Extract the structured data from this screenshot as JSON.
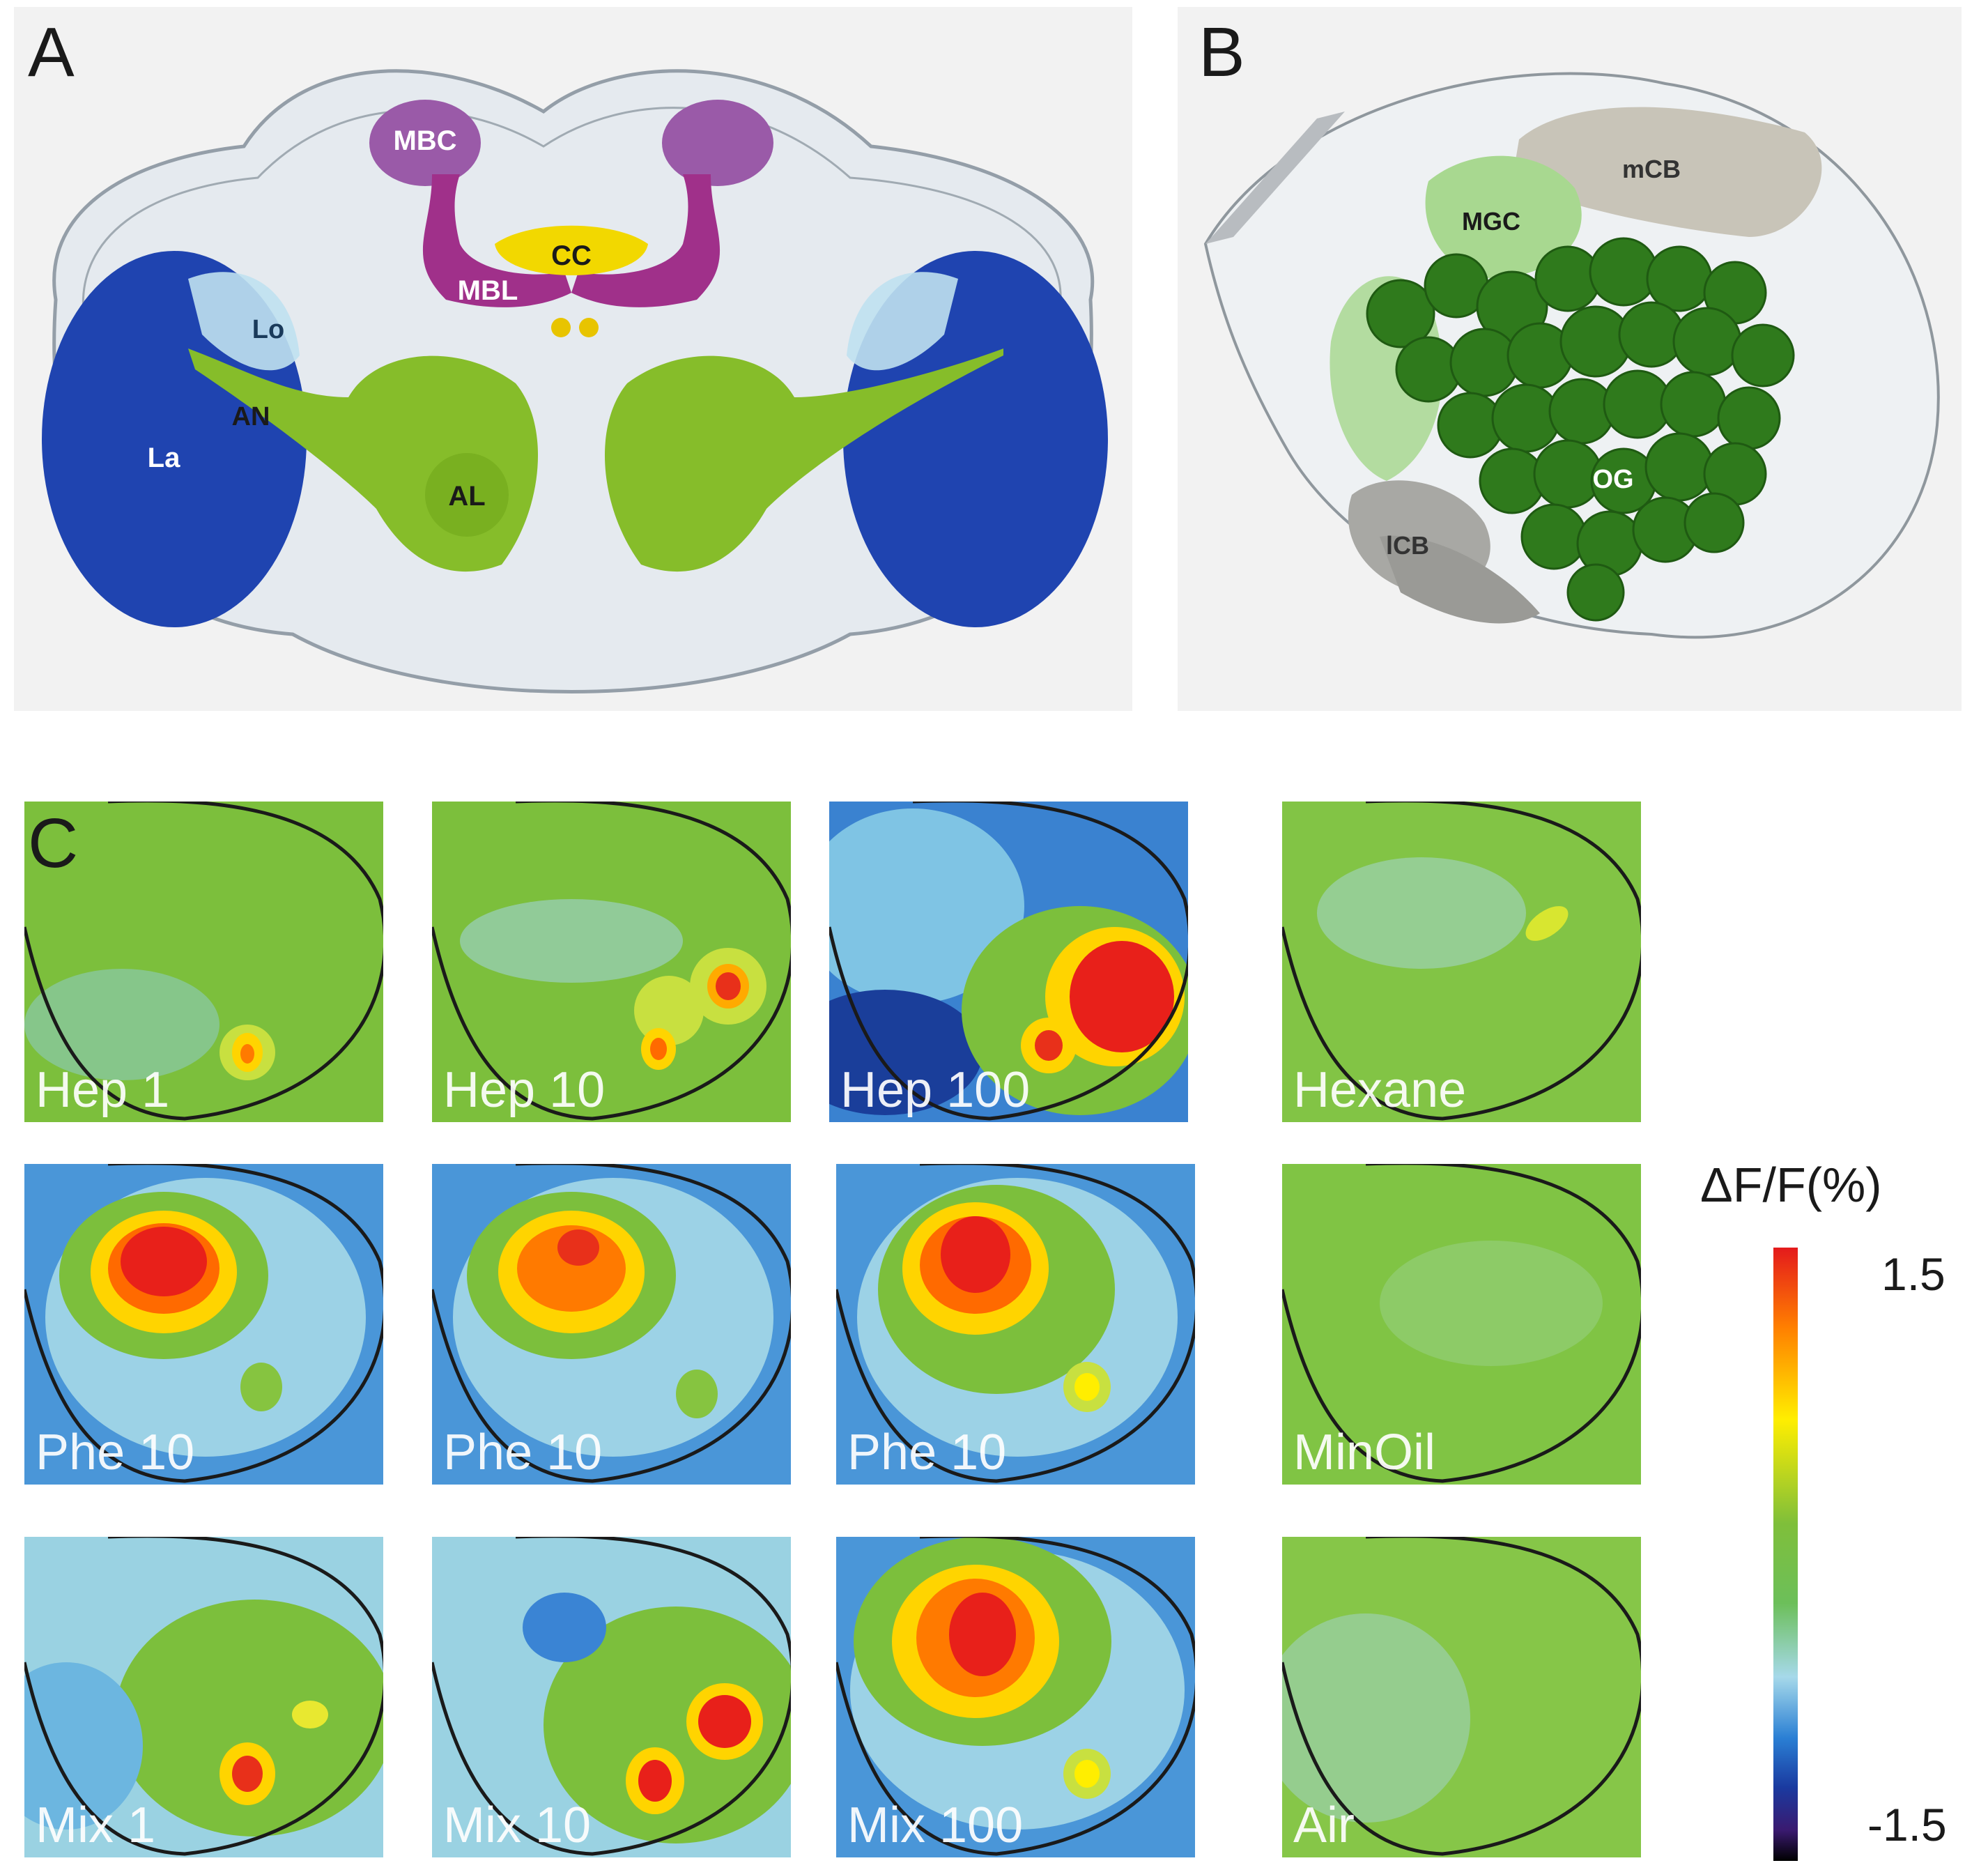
{
  "panels": {
    "a": {
      "letter": "A",
      "labels": {
        "mbc": "MBC",
        "cc": "CC",
        "mbl": "MBL",
        "lo": "Lo",
        "an": "AN",
        "la": "La",
        "al": "AL"
      }
    },
    "b": {
      "letter": "B",
      "labels": {
        "mcb": "mCB",
        "mgc": "MGC",
        "og": "OG",
        "lcb": "lCB"
      }
    },
    "c": {
      "letter": "C",
      "rows": [
        [
          "Hep 1",
          "Hep 10",
          "Hep 100",
          "Hexane"
        ],
        [
          "Phe 10",
          "Phe 10",
          "Phe 10",
          "MinOil"
        ],
        [
          "Mix 1",
          "Mix 10",
          "Mix 100",
          "Air"
        ]
      ]
    }
  },
  "colorbar": {
    "title": "ΔF/F(%)",
    "max": "1.5",
    "min": "-1.5",
    "colors": [
      "#e41a1c",
      "#ff7f00",
      "#ffee00",
      "#7fbf3a",
      "#a6d9ea",
      "#2a7fd4",
      "#1a3aa0",
      "#000000"
    ]
  }
}
